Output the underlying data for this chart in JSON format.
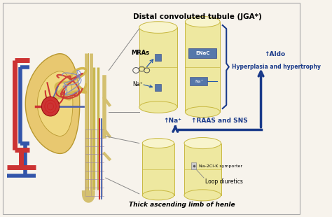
{
  "bg_color": "#f7f3ec",
  "title_text": "Distal convoluted tubule (JGA*)",
  "label_ENaC": "ENaC",
  "label_MRAs": "MRAs",
  "label_Na_small": "Na⁺",
  "label_Na_up": "↑Na⁺",
  "label_RAAS": "↑RAAS and SNS",
  "label_Aldo": "↑Aldo",
  "label_hyperplasia": "Hyperplasia and hypertrophy",
  "label_loop": "Loop diuretics",
  "label_symporter": "Na-2Cl-K symporter",
  "label_bottom": "Thick ascending limb of henle",
  "dark_blue": "#1a3a8a",
  "med_blue": "#2255aa",
  "light_blue": "#6699cc",
  "cylinder_fill": "#eee8a0",
  "cylinder_top": "#f8f4cc",
  "cylinder_edge": "#c8b840",
  "kidney_outer": "#e8c870",
  "kidney_inner": "#cc3333",
  "kidney_center": "#aa1111",
  "vessel_red": "#cc3333",
  "vessel_blue": "#3355aa",
  "vessel_tan": "#d4c070",
  "connector_color": "#888888",
  "brace_blue": "#1a3a8a"
}
